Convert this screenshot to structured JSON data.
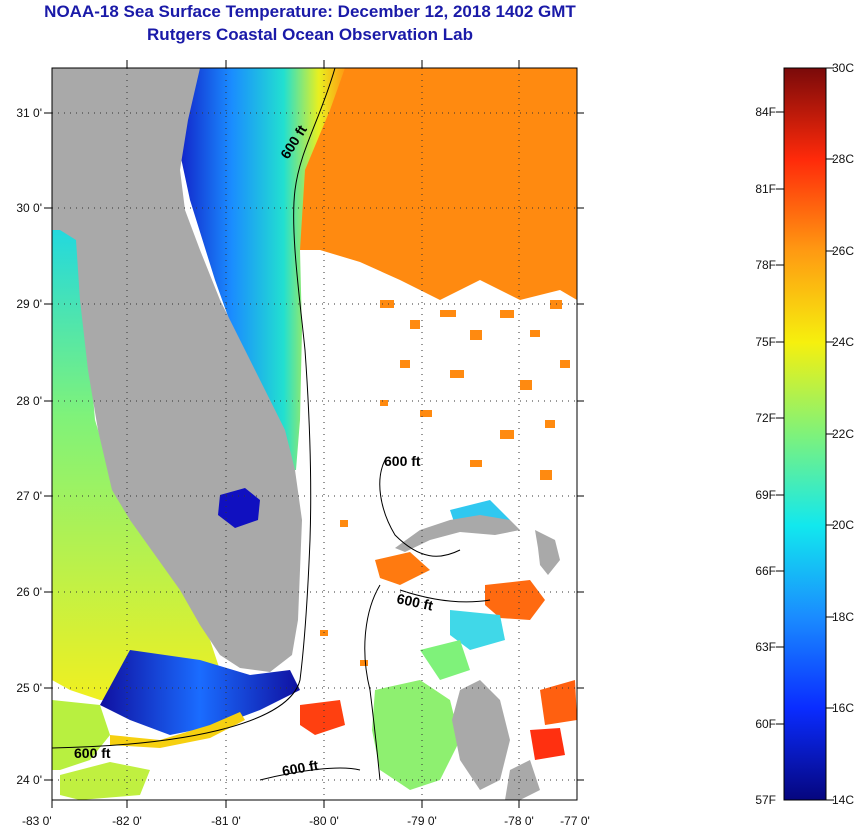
{
  "header": {
    "title": "NOAA-18 Sea Surface Temperature:  December 12, 2018 1402 GMT",
    "subtitle": "Rutgers Coastal Ocean Observation Lab"
  },
  "map": {
    "lat_ticks": [
      "31 0'",
      "30 0'",
      "29 0'",
      "28 0'",
      "27 0'",
      "26 0'",
      "25 0'",
      "24 0'"
    ],
    "lon_ticks": [
      "-83 0'",
      "-82 0'",
      "-81 0'",
      "-80 0'",
      "-79 0'",
      "-78 0'",
      "-77 0'"
    ],
    "contour_labels": [
      "600 ft",
      "600 ft",
      "600 ft",
      "600 ft",
      "600 ft"
    ]
  },
  "colorbar": {
    "fahrenheit_labels": [
      "84F",
      "81F",
      "78F",
      "75F",
      "72F",
      "69F",
      "66F",
      "63F",
      "60F",
      "57F"
    ],
    "celsius_labels": [
      "30C",
      "28C",
      "26C",
      "24C",
      "22C",
      "20C",
      "18C",
      "16C",
      "14C"
    ],
    "colors": {
      "c14": "#06067e",
      "c16": "#0a2cff",
      "c18": "#1a8cff",
      "c20": "#12e8ee",
      "c22": "#7ff27a",
      "c24": "#f6f00e",
      "c26": "#ff9a12",
      "c28": "#ff2a0a",
      "c30": "#7a0a0a"
    }
  },
  "colors": {
    "land": "#a9a9a9",
    "cloud": "#ffffff",
    "title": "#1a1aa8"
  }
}
